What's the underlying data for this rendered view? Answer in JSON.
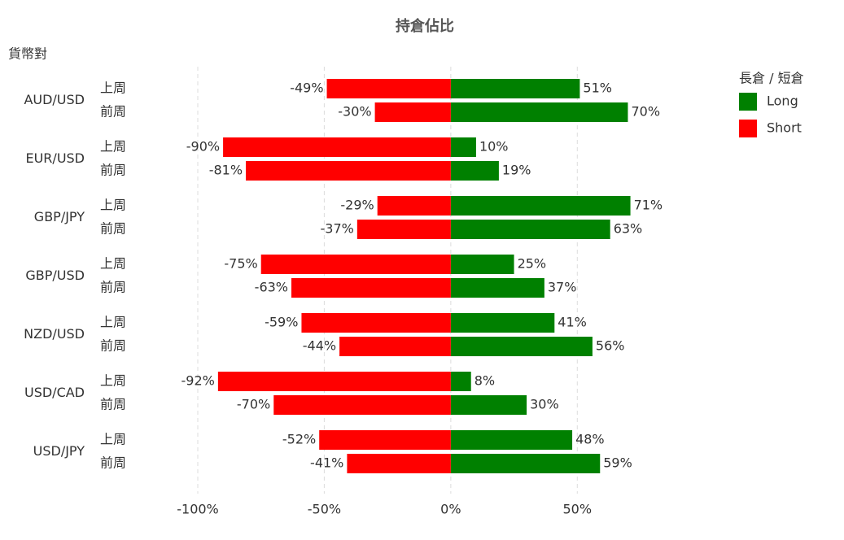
{
  "chart_data": {
    "type": "bar",
    "orientation": "horizontal",
    "title": "持倉佔比",
    "y_axis_label": "貨幣對",
    "legend_title": "長倉 / 短倉",
    "legend": "right",
    "grid": true,
    "categories": [
      "AUD/USD",
      "EUR/USD",
      "GBP/JPY",
      "GBP/USD",
      "NZD/USD",
      "USD/CAD",
      "USD/JPY"
    ],
    "subcategories": [
      "上周",
      "前周"
    ],
    "series": [
      {
        "name": "Long",
        "color": "#008000",
        "values": [
          [
            51,
            70
          ],
          [
            10,
            19
          ],
          [
            71,
            63
          ],
          [
            25,
            37
          ],
          [
            41,
            56
          ],
          [
            8,
            30
          ],
          [
            48,
            59
          ]
        ],
        "value_labels": [
          [
            "51%",
            "70%"
          ],
          [
            "10%",
            "19%"
          ],
          [
            "71%",
            "63%"
          ],
          [
            "25%",
            "37%"
          ],
          [
            "41%",
            "56%"
          ],
          [
            "8%",
            "30%"
          ],
          [
            "48%",
            "59%"
          ]
        ]
      },
      {
        "name": "Short",
        "color": "#ff0000",
        "values": [
          [
            -49,
            -30
          ],
          [
            -90,
            -81
          ],
          [
            -29,
            -37
          ],
          [
            -75,
            -63
          ],
          [
            -59,
            -44
          ],
          [
            -92,
            -70
          ],
          [
            -52,
            -41
          ]
        ],
        "value_labels": [
          [
            "-49%",
            "-30%"
          ],
          [
            "-90%",
            "-81%"
          ],
          [
            "-29%",
            "-37%"
          ],
          [
            "-75%",
            "-63%"
          ],
          [
            "-59%",
            "-44%"
          ],
          [
            "-92%",
            "-70%"
          ],
          [
            "-52%",
            "-41%"
          ]
        ]
      }
    ],
    "xlim": [
      -100,
      75
    ],
    "xticks": [
      {
        "value": -100,
        "label": "-100%"
      },
      {
        "value": -50,
        "label": "-50%"
      },
      {
        "value": 0,
        "label": "0%"
      },
      {
        "value": 50,
        "label": "50%"
      }
    ]
  }
}
